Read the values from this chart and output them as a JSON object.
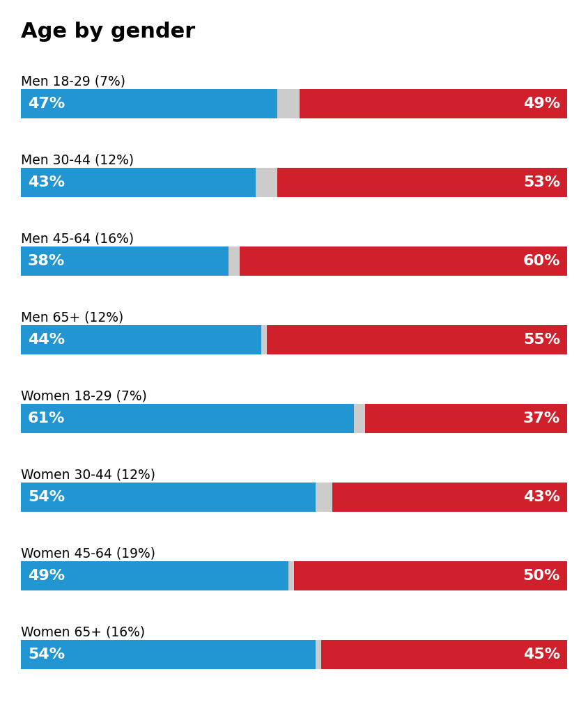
{
  "title": "Age by gender",
  "title_fontsize": 22,
  "title_fontweight": "bold",
  "background_color": "#ffffff",
  "blue_color": "#2196d3",
  "red_color": "#d0202c",
  "gap_color": "#cccccc",
  "label_fontsize": 13.5,
  "bar_label_fontsize": 16,
  "categories": [
    "Men 18-29 (7%)",
    "Men 30-44 (12%)",
    "Men 45-64 (16%)",
    "Men 65+ (12%)",
    "Women 18-29 (7%)",
    "Women 30-44 (12%)",
    "Women 45-64 (19%)",
    "Women 65+ (16%)"
  ],
  "blue_vals": [
    47,
    43,
    38,
    44,
    61,
    54,
    49,
    54
  ],
  "red_vals": [
    49,
    53,
    60,
    55,
    37,
    43,
    50,
    45
  ],
  "gap_vals": [
    4,
    4,
    2,
    1,
    2,
    3,
    1,
    1
  ]
}
